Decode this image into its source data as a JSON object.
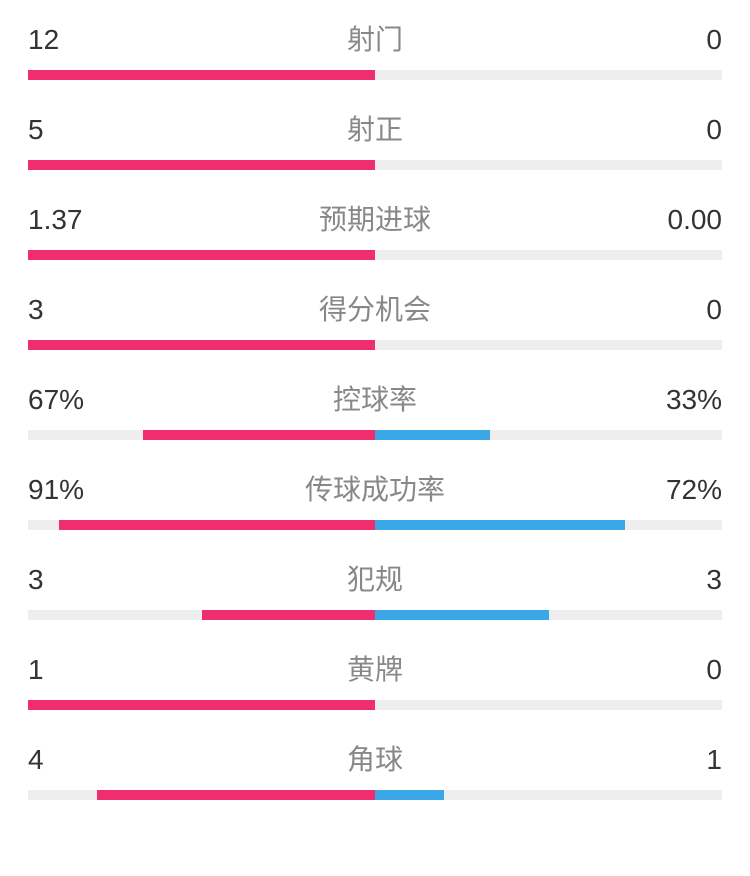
{
  "colors": {
    "left": "#ef2d6f",
    "right": "#3aa7e6",
    "track": "#eeeeee",
    "label_text": "#888888",
    "value_text": "#333333",
    "background": "#ffffff"
  },
  "typography": {
    "value_fontsize": 28,
    "label_fontsize": 28
  },
  "bar": {
    "height": 10,
    "row_gap": 28
  },
  "stats": [
    {
      "label": "射门",
      "left_display": "12",
      "right_display": "0",
      "left_pct": 100,
      "right_pct": 0
    },
    {
      "label": "射正",
      "left_display": "5",
      "right_display": "0",
      "left_pct": 100,
      "right_pct": 0
    },
    {
      "label": "预期进球",
      "left_display": "1.37",
      "right_display": "0.00",
      "left_pct": 100,
      "right_pct": 0
    },
    {
      "label": "得分机会",
      "left_display": "3",
      "right_display": "0",
      "left_pct": 100,
      "right_pct": 0
    },
    {
      "label": "控球率",
      "left_display": "67%",
      "right_display": "33%",
      "left_pct": 67,
      "right_pct": 33
    },
    {
      "label": "传球成功率",
      "left_display": "91%",
      "right_display": "72%",
      "left_pct": 91,
      "right_pct": 72
    },
    {
      "label": "犯规",
      "left_display": "3",
      "right_display": "3",
      "left_pct": 50,
      "right_pct": 50
    },
    {
      "label": "黄牌",
      "left_display": "1",
      "right_display": "0",
      "left_pct": 100,
      "right_pct": 0
    },
    {
      "label": "角球",
      "left_display": "4",
      "right_display": "1",
      "left_pct": 80,
      "right_pct": 20
    }
  ]
}
